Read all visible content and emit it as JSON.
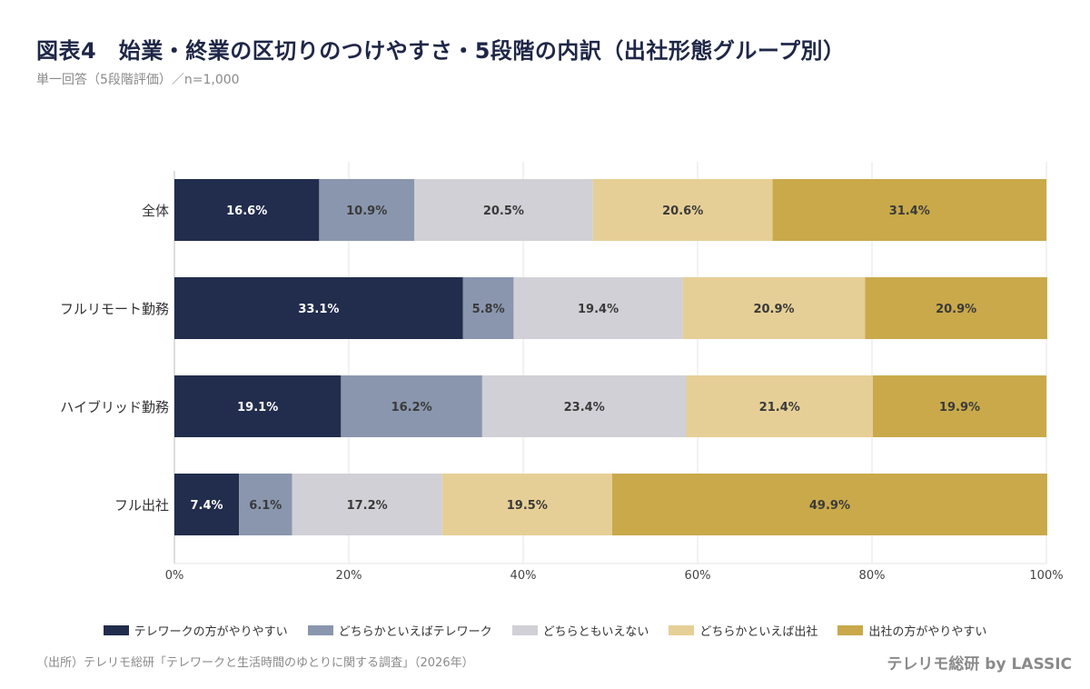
{
  "title": "図表4　始業・終業の区切りのつけやすさ・5段階の内訳（出社形態グループ別）",
  "subtitle": "単一回答（5段階評価）／n=1,000",
  "source": "（出所）テレリモ総研「テレワークと生活時間のゆとりに関する調査」（2026年）",
  "brand": "テレリモ総研 by LASSIC",
  "chart_data": {
    "type": "bar",
    "orientation": "horizontal",
    "stacked": true,
    "unit": "%",
    "categories": [
      "全体",
      "フルリモート勤務",
      "ハイブリッド勤務",
      "フル出社"
    ],
    "series": [
      {
        "name": "テレワークの方がやりやすい",
        "color": "#222d4d",
        "values": [
          16.6,
          33.1,
          19.1,
          7.4
        ]
      },
      {
        "name": "どちらかといえばテレワーク",
        "color": "#8a96ae",
        "values": [
          10.9,
          5.8,
          16.2,
          6.1
        ]
      },
      {
        "name": "どちらともいえない",
        "color": "#d0d0d6",
        "values": [
          20.5,
          19.4,
          23.4,
          17.2
        ]
      },
      {
        "name": "どちらかといえば出社",
        "color": "#e6cf96",
        "values": [
          20.6,
          20.9,
          21.4,
          19.5
        ]
      },
      {
        "name": "出社の方がやりやすい",
        "color": "#c9a94a",
        "values": [
          31.4,
          20.9,
          19.9,
          49.9
        ]
      }
    ],
    "xlim": [
      0,
      100
    ],
    "xticks": [
      0,
      20,
      40,
      60,
      80,
      100
    ],
    "xtick_labels": [
      "0%",
      "20%",
      "40%",
      "60%",
      "80%",
      "100%"
    ],
    "grid": true,
    "legend_position": "bottom"
  }
}
